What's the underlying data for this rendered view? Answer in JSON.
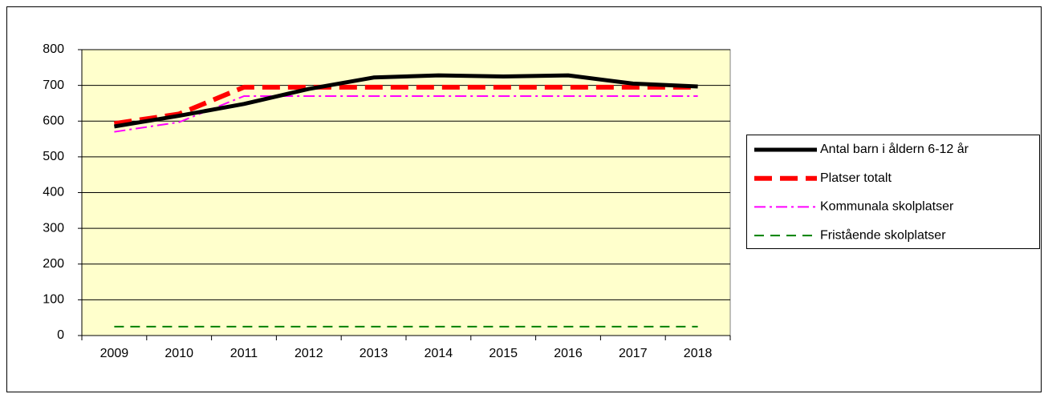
{
  "chart_data": {
    "type": "line",
    "categories": [
      "2009",
      "2010",
      "2011",
      "2012",
      "2013",
      "2014",
      "2015",
      "2016",
      "2017",
      "2018"
    ],
    "series": [
      {
        "name": "Antal barn i åldern 6-12 år",
        "color": "#000000",
        "style": "solid",
        "values": [
          585,
          615,
          648,
          690,
          722,
          728,
          725,
          728,
          705,
          697
        ]
      },
      {
        "name": "Platser totalt",
        "color": "#ff0000",
        "style": "dashed",
        "values": [
          593,
          620,
          695,
          695,
          695,
          695,
          695,
          695,
          695,
          695
        ]
      },
      {
        "name": "Kommunala skolplatser",
        "color": "#ff00ff",
        "style": "dashdot",
        "values": [
          570,
          597,
          670,
          670,
          670,
          670,
          670,
          670,
          670,
          670
        ]
      },
      {
        "name": "Fristående skolplatser",
        "color": "#008000",
        "style": "longdash",
        "values": [
          25,
          25,
          25,
          25,
          25,
          25,
          25,
          25,
          25,
          25
        ]
      }
    ],
    "ylim": [
      0,
      800
    ],
    "yticks": [
      0,
      100,
      200,
      300,
      400,
      500,
      600,
      700,
      800
    ],
    "grid": true,
    "legend": "right"
  }
}
